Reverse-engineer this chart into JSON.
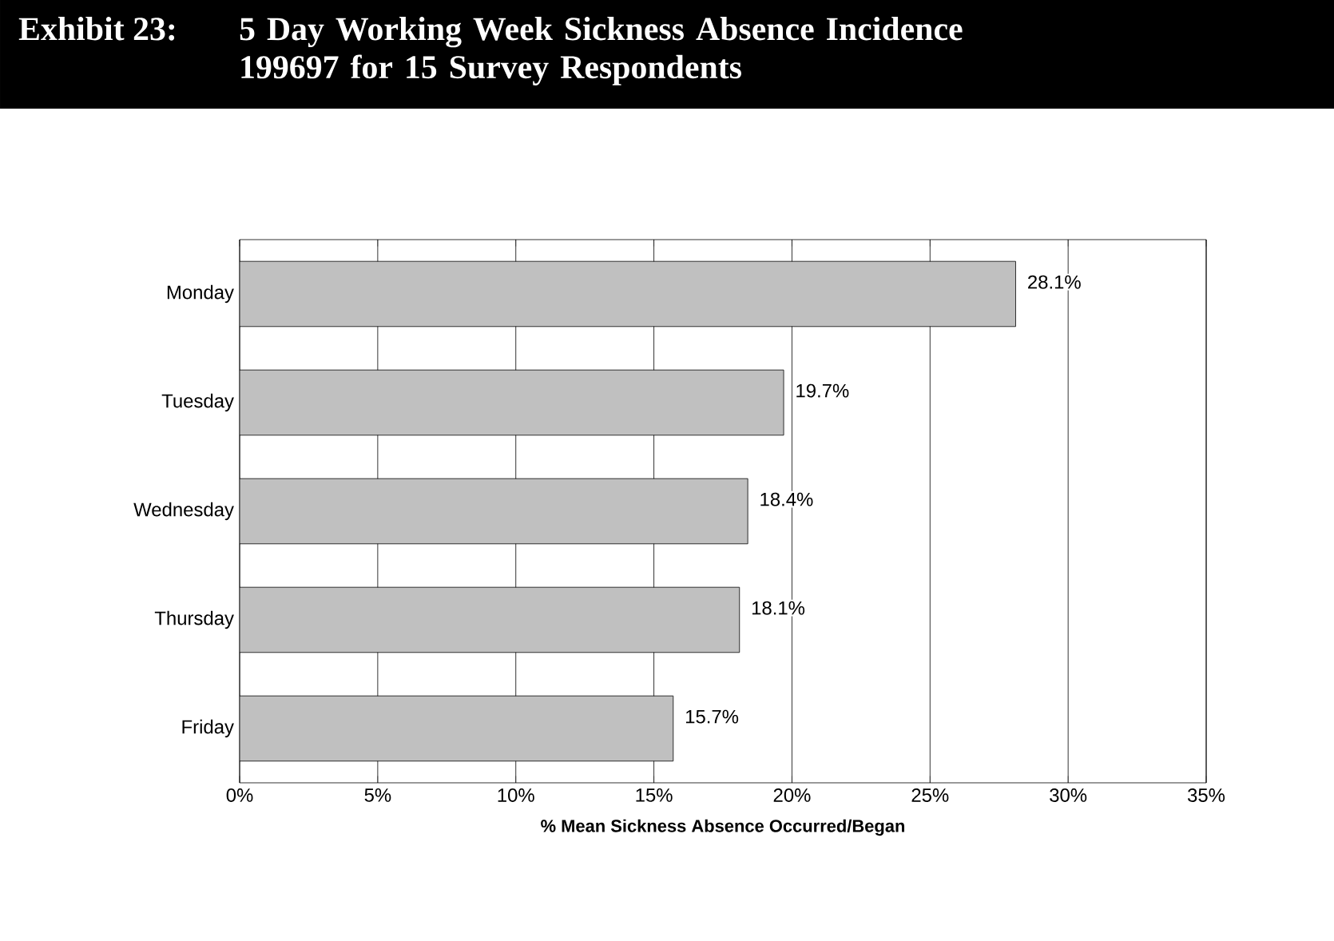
{
  "chart_data": {
    "type": "bar",
    "orientation": "horizontal",
    "title": "Exhibit 23:",
    "subtitle": "5 Day Working Week Sickness Absence Incidence 199697 for 15 Survey Respondents",
    "categories": [
      "Monday",
      "Tuesday",
      "Wednesday",
      "Thursday",
      "Friday"
    ],
    "values": [
      28.1,
      19.7,
      18.4,
      18.1,
      15.7
    ],
    "color": "#c0c0c0",
    "value_labels": [
      "28.1%",
      "19.7%",
      "18.4%",
      "18.1%",
      "15.7%"
    ],
    "xlabel": "% Mean Sickness Absence Occurred/Began",
    "xlim": [
      0,
      35
    ],
    "xticks": [
      {
        "value": 0,
        "label": "0%"
      },
      {
        "value": 5,
        "label": "5%"
      },
      {
        "value": 10,
        "label": "10%"
      },
      {
        "value": 15,
        "label": "15%"
      },
      {
        "value": 20,
        "label": "20%"
      },
      {
        "value": 25,
        "label": "25%"
      },
      {
        "value": 30,
        "label": "30%"
      },
      {
        "value": 35,
        "label": "35%"
      }
    ],
    "grid": "x"
  }
}
